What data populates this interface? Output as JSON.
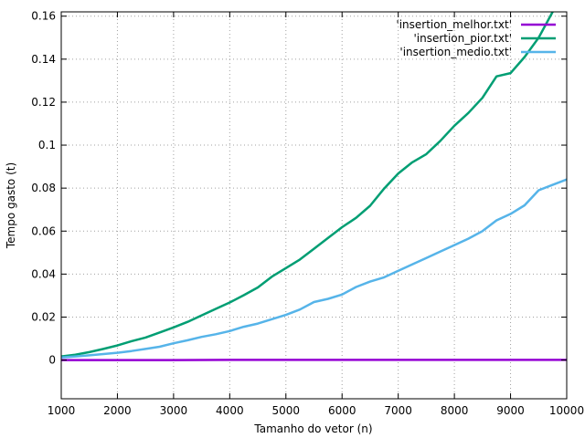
{
  "chart_data": {
    "type": "line",
    "xlabel": "Tamanho do vetor (n)",
    "ylabel": "Tempo gasto (t)",
    "xlim": [
      1000,
      10000
    ],
    "ylim": [
      -0.018,
      0.162
    ],
    "xticks": [
      1000,
      2000,
      3000,
      4000,
      5000,
      6000,
      7000,
      8000,
      9000,
      10000
    ],
    "yticks": [
      0,
      0.02,
      0.04,
      0.06,
      0.08,
      0.1,
      0.12,
      0.14,
      0.16
    ],
    "ytick_labels": [
      "0",
      "0.02",
      "0.04",
      "0.06",
      "0.08",
      "0.1",
      "0.12",
      "0.14",
      "0.16"
    ],
    "grid": true,
    "legend_position": "top-right",
    "series": [
      {
        "name": "'insertion_melhor.txt'",
        "color": "#9400d3",
        "x": [
          1000,
          2000,
          3000,
          4000,
          5000,
          6000,
          7000,
          8000,
          9000,
          10000
        ],
        "y": [
          0,
          0,
          0,
          0.0001,
          0.0001,
          0.0001,
          0.0001,
          0.0001,
          0.0001,
          0.0001
        ]
      },
      {
        "name": "'insertion_pior.txt'",
        "color": "#009e73",
        "x": [
          1000,
          1250,
          1500,
          1750,
          2000,
          2250,
          2500,
          2750,
          3000,
          3250,
          3500,
          3750,
          4000,
          4250,
          4500,
          4750,
          5000,
          5250,
          5500,
          5750,
          6000,
          6250,
          6500,
          6750,
          7000,
          7250,
          7500,
          7750,
          8000,
          8250,
          8500,
          8750,
          9000,
          9250,
          9500,
          9750
        ],
        "y": [
          0.0017,
          0.0025,
          0.0037,
          0.0052,
          0.0068,
          0.0088,
          0.0105,
          0.0128,
          0.0152,
          0.0178,
          0.0208,
          0.0238,
          0.0268,
          0.0302,
          0.0338,
          0.0388,
          0.0428,
          0.0468,
          0.0518,
          0.0568,
          0.0618,
          0.0662,
          0.0718,
          0.0798,
          0.0868,
          0.092,
          0.0958,
          0.102,
          0.109,
          0.115,
          0.122,
          0.132,
          0.1335,
          0.141,
          0.15,
          0.162
        ]
      },
      {
        "name": "'insertion_medio.txt'",
        "color": "#56b4e9",
        "x": [
          1000,
          1250,
          1500,
          1750,
          2000,
          2250,
          2500,
          2750,
          3000,
          3250,
          3500,
          3750,
          4000,
          4250,
          4500,
          4750,
          5000,
          5250,
          5500,
          5750,
          6000,
          6250,
          6500,
          6750,
          7000,
          7250,
          7500,
          7750,
          8000,
          8250,
          8500,
          8750,
          9000,
          9250,
          9500,
          9750,
          10000
        ],
        "y": [
          0.0012,
          0.0017,
          0.0022,
          0.0028,
          0.0034,
          0.0042,
          0.0052,
          0.0062,
          0.0078,
          0.0092,
          0.0108,
          0.012,
          0.0135,
          0.0155,
          0.017,
          0.019,
          0.021,
          0.0235,
          0.027,
          0.0285,
          0.0305,
          0.034,
          0.0365,
          0.0385,
          0.0415,
          0.0445,
          0.0475,
          0.0505,
          0.0535,
          0.0565,
          0.06,
          0.065,
          0.068,
          0.072,
          0.079,
          0.0815,
          0.084
        ]
      }
    ]
  }
}
